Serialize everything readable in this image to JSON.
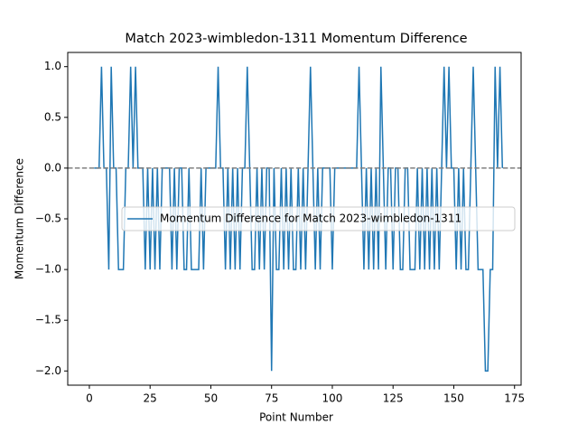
{
  "chart_data": {
    "type": "line",
    "title": "Match 2023-wimbledon-1311 Momentum Difference",
    "x_label": "Point Number",
    "y_label": "Momentum Difference",
    "x": [
      2,
      3,
      4,
      5,
      6,
      7,
      8,
      9,
      10,
      11,
      12,
      13,
      14,
      15,
      16,
      17,
      18,
      19,
      20,
      21,
      22,
      23,
      24,
      25,
      26,
      27,
      28,
      29,
      30,
      31,
      32,
      33,
      34,
      35,
      36,
      37,
      38,
      39,
      40,
      41,
      42,
      43,
      44,
      45,
      46,
      47,
      48,
      49,
      50,
      51,
      52,
      53,
      54,
      55,
      56,
      57,
      58,
      59,
      60,
      61,
      62,
      63,
      64,
      65,
      66,
      67,
      68,
      69,
      70,
      71,
      72,
      73,
      74,
      75,
      76,
      77,
      78,
      79,
      80,
      81,
      82,
      83,
      84,
      85,
      86,
      87,
      88,
      89,
      90,
      91,
      92,
      93,
      94,
      95,
      96,
      97,
      98,
      99,
      100,
      101,
      102,
      103,
      104,
      105,
      106,
      107,
      108,
      109,
      110,
      111,
      112,
      113,
      114,
      115,
      116,
      117,
      118,
      119,
      120,
      121,
      122,
      123,
      124,
      125,
      126,
      127,
      128,
      129,
      130,
      131,
      132,
      133,
      134,
      135,
      136,
      137,
      138,
      139,
      140,
      141,
      142,
      143,
      144,
      145,
      146,
      147,
      148,
      149,
      150,
      151,
      152,
      153,
      154,
      155,
      156,
      157,
      158,
      159,
      160,
      161,
      162,
      163,
      164,
      165,
      166,
      167,
      168,
      169,
      170
    ],
    "series": [
      {
        "name": "Momentum Difference for Match 2023-wimbledon-1311",
        "color": "#1f77b4",
        "values": [
          0,
          0,
          0,
          1,
          0,
          0,
          -1,
          1,
          0,
          0,
          -1,
          -1,
          -1,
          0,
          0,
          1,
          0,
          1,
          0,
          0,
          0,
          -1,
          0,
          -1,
          0,
          -1,
          0,
          -1,
          0,
          0,
          0,
          0,
          -1,
          0,
          -1,
          0,
          0,
          -1,
          -1,
          0,
          -1,
          -1,
          -1,
          -1,
          0,
          -1,
          0,
          0,
          0,
          0,
          0,
          1,
          0,
          0,
          -1,
          0,
          -1,
          0,
          -1,
          0,
          -1,
          0,
          0,
          1,
          0,
          -1,
          -1,
          0,
          -1,
          0,
          -1,
          0,
          0,
          -2,
          0,
          -1,
          -1,
          0,
          -1,
          0,
          -1,
          0,
          -1,
          -1,
          0,
          -1,
          0,
          -1,
          0,
          1,
          0,
          -1,
          0,
          -1,
          0,
          0,
          0,
          0,
          -1,
          0,
          0,
          0,
          0,
          0,
          0,
          0,
          0,
          0,
          0,
          1,
          0,
          -1,
          0,
          -1,
          0,
          -1,
          0,
          -1,
          1,
          0,
          -1,
          0,
          0,
          -1,
          0,
          0,
          -1,
          -1,
          0,
          0,
          -1,
          -1,
          -1,
          0,
          -1,
          0,
          -1,
          0,
          -1,
          0,
          -1,
          0,
          -1,
          0,
          1,
          0,
          1,
          0,
          0,
          -1,
          0,
          -1,
          0,
          -1,
          -1,
          0,
          1,
          0,
          -1,
          -1,
          -1,
          -2,
          -2,
          -1,
          -1,
          1,
          0,
          1,
          0
        ]
      }
    ],
    "hline": {
      "value": 0,
      "color": "#808080"
    },
    "xlim": [
      -8.9,
      177.7
    ],
    "ylim": [
      -2.14,
      1.14
    ],
    "xticks": [
      0,
      25,
      50,
      75,
      100,
      125,
      150,
      175
    ],
    "yticks": [
      {
        "value": -2,
        "label": "−2.0"
      },
      {
        "value": -1.5,
        "label": "−1.5"
      },
      {
        "value": -1,
        "label": "−1.0"
      },
      {
        "value": -0.5,
        "label": "−0.5"
      },
      {
        "value": 0,
        "label": "0.0"
      },
      {
        "value": 0.5,
        "label": "0.5"
      },
      {
        "value": 1,
        "label": "1.0"
      }
    ],
    "legend": "center right"
  }
}
